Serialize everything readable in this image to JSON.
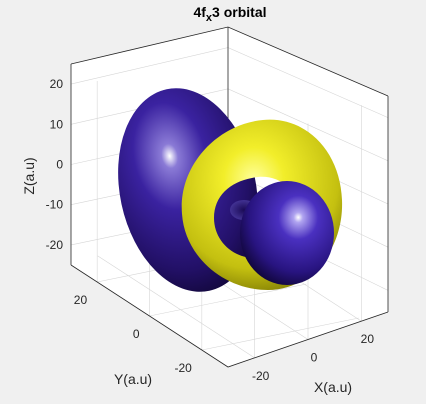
{
  "chart_data": {
    "type": "isosurface-3d",
    "title": {
      "main": "4f",
      "subscript": "x",
      "superscript": "3",
      "rest": " orbital"
    },
    "xlabel": "X(a.u)",
    "ylabel": "Y(a.u)",
    "zlabel": "Z(a.u)",
    "x_ticks": [
      -20,
      0,
      20
    ],
    "y_ticks": [
      -20,
      0,
      20
    ],
    "z_ticks": [
      -20,
      -10,
      0,
      10,
      20
    ],
    "x_range": [
      -30,
      30
    ],
    "y_range": [
      -30,
      30
    ],
    "z_range": [
      -25,
      25
    ],
    "grid": true,
    "lobes": [
      {
        "shape": "sphere",
        "phase": "negative",
        "color": "#3a1a8f"
      },
      {
        "shape": "torus",
        "phase": "positive",
        "color": "#d9d61a"
      },
      {
        "shape": "torus",
        "phase": "negative",
        "color": "#3a1a8f"
      },
      {
        "shape": "sphere",
        "phase": "positive",
        "color": "#d9d61a"
      }
    ],
    "colors": {
      "positive": "#d9d61a",
      "negative": "#3a1a8f",
      "background": "#f0f0f0",
      "axes_background": "#ffffff"
    }
  }
}
